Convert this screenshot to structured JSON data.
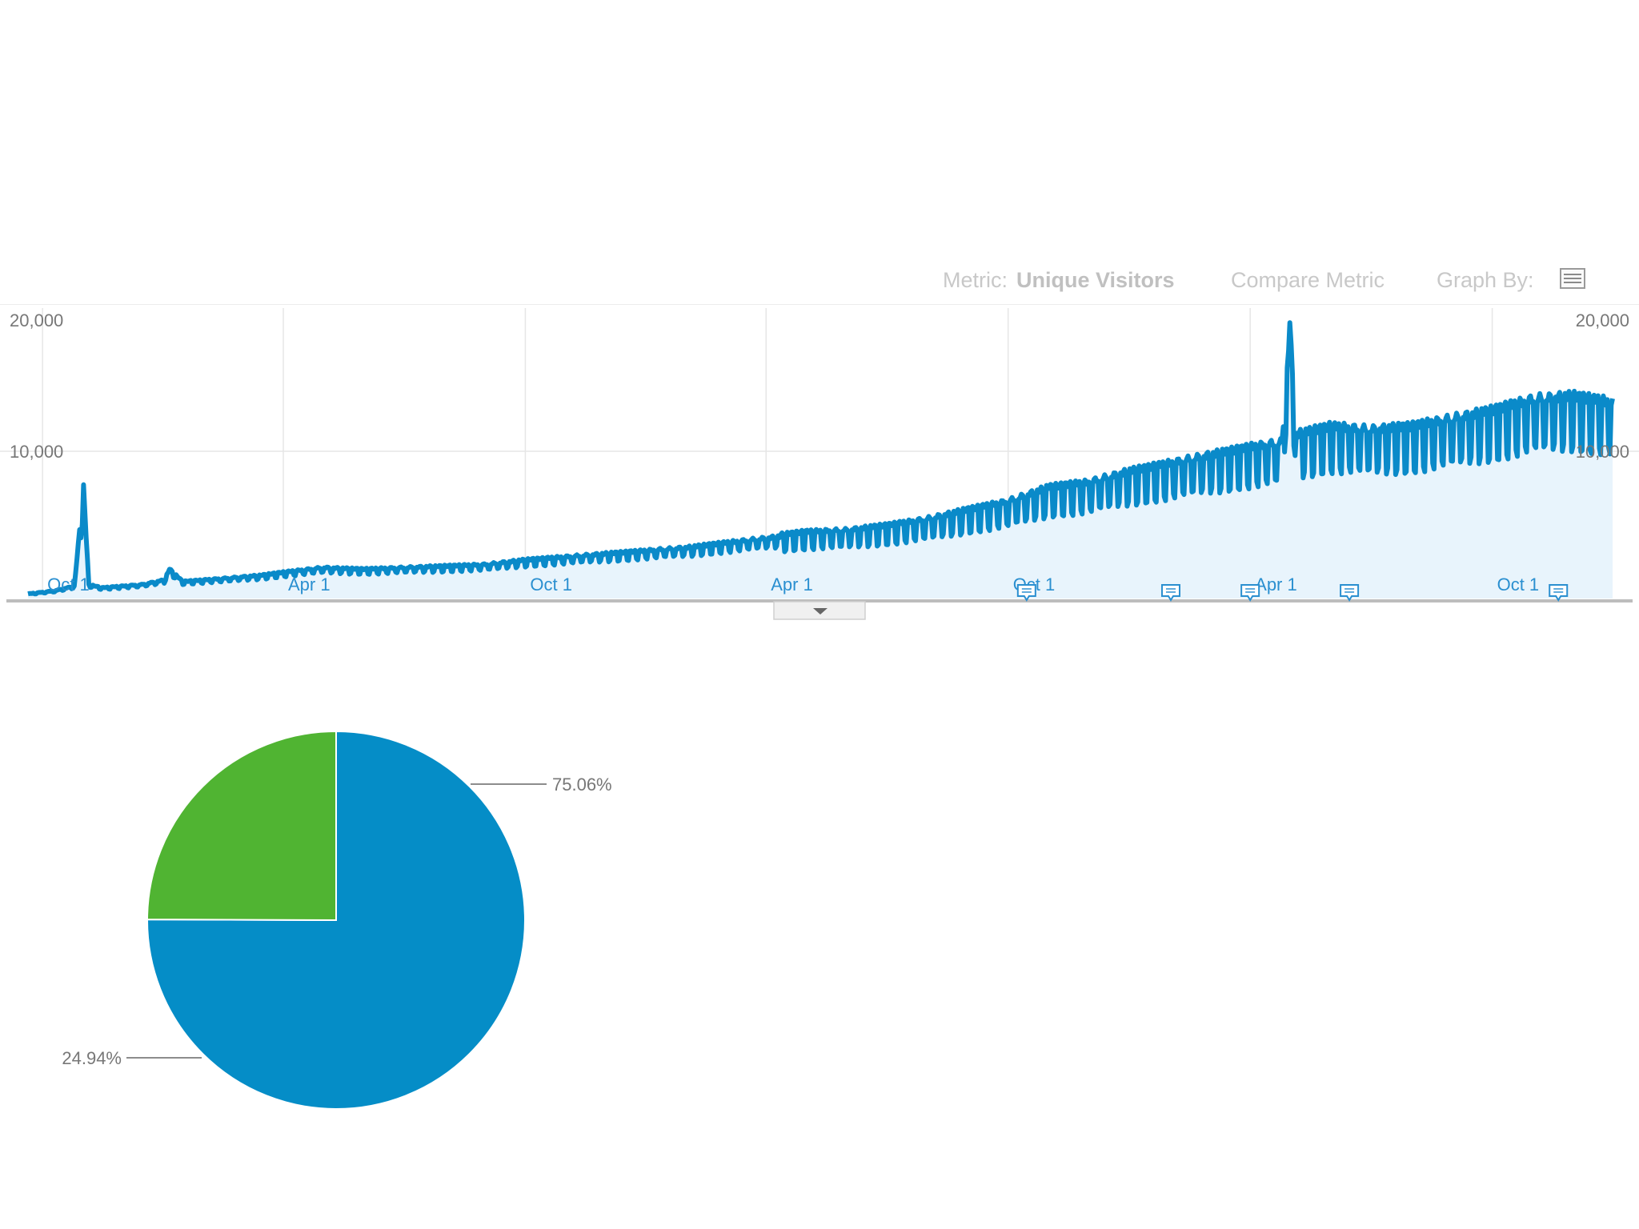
{
  "toolbar": {
    "metric_label": "Metric:",
    "metric_value": "Unique Visitors",
    "compare_label": "Compare Metric",
    "graph_by_label": "Graph By:",
    "graph_by_icon": "table-icon"
  },
  "colors": {
    "line": "#0a8ac9",
    "area": "#e8f4fc",
    "pie_primary": "#058dc7",
    "pie_secondary": "#50b432",
    "grid": "#e6e6e6",
    "axis_text": "#777777",
    "date_text": "#2a8fd0"
  },
  "chart_data": [
    {
      "type": "area",
      "title": "",
      "series": [
        {
          "name": "Unique Visitors",
          "x_start": "2009-09-20",
          "x_end": "2012-12-31",
          "points": [
            [
              "2009-09-20",
              300
            ],
            [
              "2009-10-10",
              500
            ],
            [
              "2009-10-25",
              800
            ],
            [
              "2009-11-01",
              7000
            ],
            [
              "2009-11-05",
              900
            ],
            [
              "2009-11-15",
              700
            ],
            [
              "2009-12-15",
              900
            ],
            [
              "2010-01-01",
              1200
            ],
            [
              "2010-01-05",
              1900
            ],
            [
              "2010-01-15",
              1100
            ],
            [
              "2010-02-15",
              1300
            ],
            [
              "2010-03-15",
              1500
            ],
            [
              "2010-04-01",
              1700
            ],
            [
              "2010-05-01",
              2000
            ],
            [
              "2010-06-01",
              1900
            ],
            [
              "2010-07-01",
              2000
            ],
            [
              "2010-08-01",
              2100
            ],
            [
              "2010-09-01",
              2200
            ],
            [
              "2010-10-01",
              2500
            ],
            [
              "2010-11-01",
              2700
            ],
            [
              "2010-12-01",
              2900
            ],
            [
              "2011-01-01",
              3100
            ],
            [
              "2011-02-01",
              3300
            ],
            [
              "2011-03-01",
              3600
            ],
            [
              "2011-04-01",
              3900
            ],
            [
              "2011-05-01",
              4200
            ],
            [
              "2011-06-01",
              4300
            ],
            [
              "2011-07-01",
              4600
            ],
            [
              "2011-08-01",
              5000
            ],
            [
              "2011-09-01",
              5600
            ],
            [
              "2011-10-01",
              6100
            ],
            [
              "2011-11-01",
              7000
            ],
            [
              "2011-12-01",
              7300
            ],
            [
              "2012-01-01",
              8000
            ],
            [
              "2012-02-01",
              8500
            ],
            [
              "2012-03-01",
              9000
            ],
            [
              "2012-04-01",
              9500
            ],
            [
              "2012-04-25",
              9800
            ],
            [
              "2012-05-01",
              17000
            ],
            [
              "2012-05-06",
              10300
            ],
            [
              "2012-06-01",
              10800
            ],
            [
              "2012-07-01",
              10600
            ],
            [
              "2012-08-01",
              10800
            ],
            [
              "2012-09-01",
              11300
            ],
            [
              "2012-10-01",
              11800
            ],
            [
              "2012-11-01",
              12500
            ],
            [
              "2012-12-01",
              12700
            ],
            [
              "2012-12-31",
              12300
            ]
          ]
        }
      ],
      "y_ticks": [
        "20,000",
        "10,000"
      ],
      "x_ticks": [
        {
          "date": "2009-10-01",
          "label": "Oct 1"
        },
        {
          "date": "2010-04-01",
          "label": "Apr 1"
        },
        {
          "date": "2010-10-01",
          "label": "Oct 1"
        },
        {
          "date": "2011-04-01",
          "label": "Apr 1"
        },
        {
          "date": "2011-10-01",
          "label": "Oct 1"
        },
        {
          "date": "2012-04-01",
          "label": "Apr 1"
        },
        {
          "date": "2012-10-01",
          "label": "Oct 1"
        }
      ],
      "ylim": [
        0,
        20000
      ],
      "grid": true,
      "annotations": [
        {
          "date": "2011-10-15"
        },
        {
          "date": "2012-02-01"
        },
        {
          "date": "2012-04-01"
        },
        {
          "date": "2012-06-15"
        },
        {
          "date": "2012-11-20"
        }
      ]
    },
    {
      "type": "pie",
      "title": "",
      "slices": [
        {
          "label": "75.06%",
          "value": 75.06
        },
        {
          "label": "24.94%",
          "value": 24.94
        }
      ]
    }
  ]
}
